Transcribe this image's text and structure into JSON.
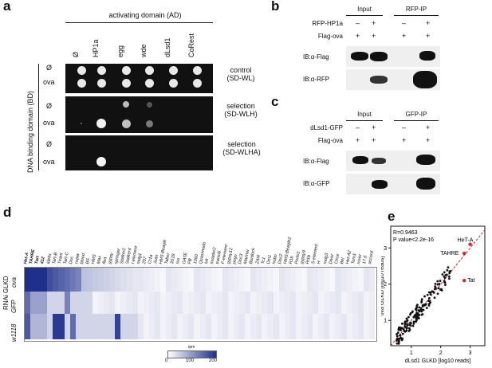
{
  "panels": {
    "a": "a",
    "b": "b",
    "c": "c",
    "d": "d",
    "e": "e"
  },
  "panel_a": {
    "ad_header": "activating domain (AD)",
    "bd_side_label": "DNA binding domain (BD)",
    "columns": [
      "Ø",
      "HP1a",
      "egg",
      "wde",
      "dLsd1",
      "CoRest"
    ],
    "rows": [
      "Ø",
      "ova",
      "Ø",
      "ova",
      "Ø",
      "ova"
    ],
    "row_groups": [
      {
        "line1": "control",
        "line2": "(SD-WL)"
      },
      {
        "line1": "selection",
        "line2": "(SD-WLH)"
      },
      {
        "line1": "selection",
        "line2": "(SD-WLHA)"
      }
    ]
  },
  "panel_b": {
    "col_headers": [
      "Input",
      "RFP-IP"
    ],
    "row_labels": [
      "RFP-HP1a",
      "Flag-ova"
    ],
    "signs_row1": [
      "–",
      "+",
      "–",
      "+"
    ],
    "signs_row2": [
      "+",
      "+",
      "+",
      "+"
    ],
    "blots": [
      "IB:α-Flag",
      "IB:α-RFP"
    ]
  },
  "panel_c": {
    "col_headers": [
      "Input",
      "GFP-IP"
    ],
    "row_labels": [
      "dLsd1-GFP",
      "Flag-ova"
    ],
    "signs_row1": [
      "–",
      "+",
      "–",
      "+"
    ],
    "signs_row2": [
      "+",
      "+",
      "+",
      "+"
    ],
    "blots": [
      "IB:α-Flag",
      "IB:α-GFP"
    ]
  },
  "panel_d": {
    "side_label": "RNAi GLKD",
    "row_labels": [
      "ova",
      "GFP",
      "w1118"
    ],
    "colorbar_title": "rpm",
    "colorbar_ticks": [
      "0",
      "100",
      "200"
    ],
    "colors": {
      "low": "#ffffff",
      "high": "#1f2f8c"
    },
    "te_labels": [
      "Het-A",
      "TAHRE",
      "Tart",
      "412",
      "Idefix",
      "Tart-B",
      "Tirant",
      "Tart-C",
      "Doc",
      "copia",
      "blood",
      "BS",
      "HMS",
      "Max",
      "flea",
      "gypsy",
      "springer",
      "Stalker2",
      "Stalker4",
      "I-element",
      "mdg1",
      "297",
      "Cr1a",
      "Juan",
      "HMS-Beagle",
      "Tabor",
      "3S18",
      "roo",
      "GATE",
      "FB",
      "1360",
      "Quasimodo",
      "Ivk",
      "invader2",
      "transib",
      "F-element",
      "gypsy12",
      "pogo",
      "Doc3",
      "Mariner",
      "Burdock",
      "ZAM",
      "Tc1",
      "Dm1",
      "hobo",
      "Doc2",
      "HMS-Beagle2",
      "R1b",
      "Porto1",
      "gypsy9",
      "Rt1b",
      "S-element",
      "H",
      "mdg3",
      "Diver",
      "Circe",
      "Bel",
      "Het-A2",
      "Tom1",
      "rover",
      "17.6",
      "accord"
    ]
  },
  "panel_e": {
    "r_text": "R=0.9463",
    "p_text": "P value<2.2e-16",
    "xlabel": "dLsd1 GLKD [log10 reads]",
    "ylabel": "ova GLKD [log10 reads]",
    "highlights": [
      "HeT-A",
      "TAHRE",
      "Tat"
    ],
    "x_ticks": [
      "1",
      "2",
      "3"
    ],
    "y_ticks": [
      "1",
      "2",
      "3"
    ]
  },
  "chart_data": {
    "type": "scatter",
    "xlabel": "dLsd1 GLKD [log10 reads]",
    "ylabel": "ova GLKD [log10 reads]",
    "xlim": [
      0.3,
      3.5
    ],
    "ylim": [
      0.3,
      3.6
    ],
    "highlighted": [
      {
        "name": "HeT-A",
        "x": 3.0,
        "y": 3.1
      },
      {
        "name": "TAHRE",
        "x": 2.8,
        "y": 2.85
      },
      {
        "name": "Tat",
        "x": 2.8,
        "y": 2.1
      }
    ]
  }
}
